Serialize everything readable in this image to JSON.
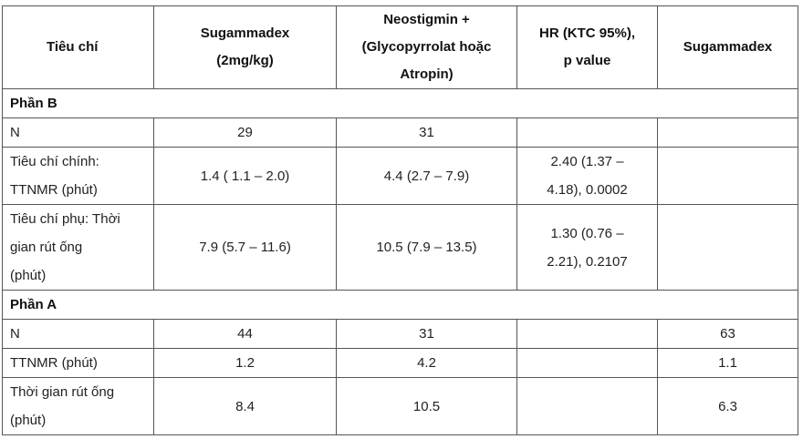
{
  "table": {
    "header": [
      [
        "Tiêu chí"
      ],
      [
        "Sugammadex",
        "(2mg/kg)"
      ],
      [
        "Neostigmin +",
        "(Glycopyrrolat hoặc",
        "Atropin)"
      ],
      [
        "HR (KTC 95%),",
        "p value"
      ],
      [
        "Sugammadex"
      ]
    ],
    "sections": [
      {
        "title": "Phần B",
        "rows": [
          [
            [
              "N"
            ],
            [
              "29"
            ],
            [
              "31"
            ],
            [],
            []
          ],
          [
            [
              "Tiêu chí chính:",
              "TTNMR (phút)"
            ],
            [
              "1.4 ( 1.1 – 2.0)"
            ],
            [
              "4.4 (2.7 – 7.9)"
            ],
            [
              "2.40 (1.37 –",
              "4.18), 0.0002"
            ],
            []
          ],
          [
            [
              "Tiêu chí phụ: Thời",
              "gian rút ống",
              "(phút)"
            ],
            [
              "7.9 (5.7 – 11.6)"
            ],
            [
              "10.5 (7.9 – 13.5)"
            ],
            [
              "1.30 (0.76 –",
              "2.21), 0.2107"
            ],
            []
          ]
        ]
      },
      {
        "title": "Phần A",
        "rows": [
          [
            [
              "N"
            ],
            [
              "44"
            ],
            [
              "31"
            ],
            [],
            [
              "63"
            ]
          ],
          [
            [
              "TTNMR (phút)"
            ],
            [
              "1.2"
            ],
            [
              "4.2"
            ],
            [],
            [
              "1.1"
            ]
          ],
          [
            [
              "Thời gian rút ống",
              "(phút)"
            ],
            [
              "8.4"
            ],
            [
              "10.5"
            ],
            [],
            [
              "6.3"
            ]
          ]
        ]
      }
    ]
  }
}
